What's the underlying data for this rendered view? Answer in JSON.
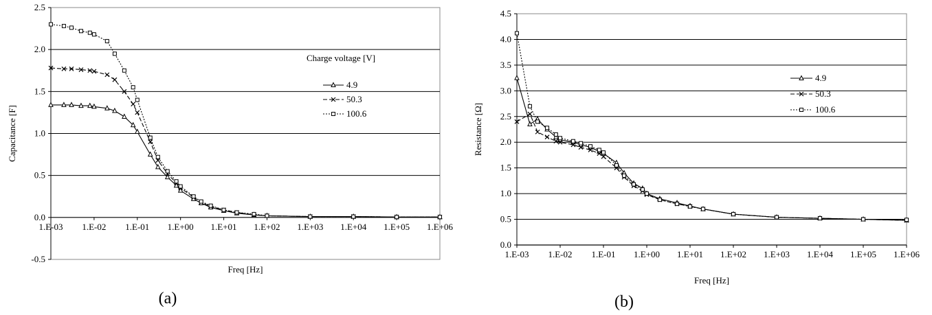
{
  "chart_data": [
    {
      "type": "line",
      "caption": "(a)",
      "xlabel": "Freq [Hz]",
      "ylabel": "Capacitance [F]",
      "x_scale": "log",
      "xlim": [
        0.001,
        1000000
      ],
      "ylim": [
        -0.5,
        2.5
      ],
      "x_ticks": [
        "1.E-03",
        "1.E-02",
        "1.E-01",
        "1.E+00",
        "1.E+01",
        "1.E+02",
        "1.E+03",
        "1.E+04",
        "1.E+05",
        "1.E+06"
      ],
      "y_ticks": [
        "-0.5",
        "0.0",
        "0.5",
        "1.0",
        "1.5",
        "2.0",
        "2.5"
      ],
      "y_tick_values": [
        -0.5,
        0,
        0.5,
        1,
        1.5,
        2,
        2.5
      ],
      "grid": "horizontal",
      "legend_title": "Charge voltage [V]",
      "legend_position": "right",
      "series": [
        {
          "name": "4.9",
          "marker": "triangle",
          "dash": "solid",
          "x": [
            0.001,
            0.002,
            0.003,
            0.005,
            0.008,
            0.01,
            0.02,
            0.03,
            0.05,
            0.08,
            0.1,
            0.2,
            0.3,
            0.5,
            0.8,
            1,
            2,
            3,
            5,
            10,
            20,
            50,
            100,
            1000,
            10000,
            100000,
            1000000
          ],
          "y": [
            1.34,
            1.34,
            1.34,
            1.33,
            1.33,
            1.32,
            1.3,
            1.27,
            1.2,
            1.1,
            1.02,
            0.75,
            0.6,
            0.48,
            0.38,
            0.32,
            0.22,
            0.17,
            0.12,
            0.08,
            0.05,
            0.03,
            0.02,
            0.01,
            0.01,
            0.005,
            0.005
          ]
        },
        {
          "name": "50.3",
          "marker": "x",
          "dash": "dash",
          "x": [
            0.001,
            0.002,
            0.003,
            0.005,
            0.008,
            0.01,
            0.02,
            0.03,
            0.05,
            0.08,
            0.1,
            0.2,
            0.3,
            0.5,
            0.8,
            1,
            2,
            3,
            5,
            10,
            20,
            50,
            100,
            1000,
            10000,
            100000,
            1000000
          ],
          "y": [
            1.78,
            1.77,
            1.77,
            1.76,
            1.75,
            1.74,
            1.7,
            1.64,
            1.5,
            1.35,
            1.25,
            0.9,
            0.68,
            0.52,
            0.41,
            0.35,
            0.24,
            0.18,
            0.13,
            0.09,
            0.06,
            0.03,
            0.02,
            0.01,
            0.01,
            0.005,
            0.005
          ]
        },
        {
          "name": "100.6",
          "marker": "square",
          "dash": "dot",
          "x": [
            0.001,
            0.002,
            0.003,
            0.005,
            0.008,
            0.01,
            0.02,
            0.03,
            0.05,
            0.08,
            0.1,
            0.2,
            0.3,
            0.5,
            0.8,
            1,
            2,
            3,
            5,
            10,
            20,
            50,
            100,
            1000,
            10000,
            100000,
            1000000
          ],
          "y": [
            2.3,
            2.28,
            2.26,
            2.22,
            2.2,
            2.18,
            2.1,
            1.95,
            1.75,
            1.55,
            1.4,
            0.95,
            0.72,
            0.55,
            0.43,
            0.37,
            0.25,
            0.19,
            0.14,
            0.09,
            0.06,
            0.04,
            0.02,
            0.01,
            0.01,
            0.005,
            0.005
          ]
        }
      ]
    },
    {
      "type": "line",
      "caption": "(b)",
      "xlabel": "Freq [Hz]",
      "ylabel": "Resistance [Ω]",
      "x_scale": "log",
      "xlim": [
        0.001,
        1000000
      ],
      "ylim": [
        0,
        4.5
      ],
      "x_ticks": [
        "1.E-03",
        "1.E-02",
        "1.E-01",
        "1.E+00",
        "1.E+01",
        "1.E+02",
        "1.E+03",
        "1.E+04",
        "1.E+05",
        "1.E+06"
      ],
      "y_ticks": [
        "0.0",
        "0.5",
        "1.0",
        "1.5",
        "2.0",
        "2.5",
        "3.0",
        "3.5",
        "4.0",
        "4.5"
      ],
      "y_tick_values": [
        0,
        0.5,
        1,
        1.5,
        2,
        2.5,
        3,
        3.5,
        4,
        4.5
      ],
      "grid": "horizontal",
      "legend_title": "",
      "legend_position": "right",
      "series": [
        {
          "name": "4.9",
          "marker": "triangle",
          "dash": "solid",
          "x": [
            0.001,
            0.002,
            0.003,
            0.005,
            0.008,
            0.01,
            0.02,
            0.03,
            0.05,
            0.08,
            0.1,
            0.2,
            0.3,
            0.5,
            0.8,
            1,
            2,
            5,
            10,
            20,
            100,
            1000,
            10000,
            100000,
            1000000
          ],
          "y": [
            3.25,
            2.35,
            2.45,
            2.25,
            2.1,
            2.05,
            2.0,
            1.95,
            1.9,
            1.82,
            1.78,
            1.6,
            1.4,
            1.2,
            1.1,
            1.0,
            0.9,
            0.82,
            0.76,
            0.7,
            0.6,
            0.54,
            0.52,
            0.5,
            0.48
          ]
        },
        {
          "name": "50.3",
          "marker": "x",
          "dash": "dash",
          "x": [
            0.001,
            0.002,
            0.003,
            0.005,
            0.008,
            0.01,
            0.02,
            0.03,
            0.05,
            0.08,
            0.1,
            0.2,
            0.3,
            0.5,
            0.8,
            1,
            2,
            5,
            10,
            20,
            100,
            1000,
            10000,
            100000,
            1000000
          ],
          "y": [
            2.4,
            2.55,
            2.2,
            2.1,
            2.02,
            2.0,
            1.95,
            1.9,
            1.85,
            1.78,
            1.72,
            1.5,
            1.32,
            1.15,
            1.05,
            0.98,
            0.88,
            0.8,
            0.75,
            0.7,
            0.6,
            0.54,
            0.52,
            0.5,
            0.48
          ]
        },
        {
          "name": "100.6",
          "marker": "square",
          "dash": "dot",
          "x": [
            0.001,
            0.002,
            0.003,
            0.005,
            0.008,
            0.01,
            0.02,
            0.03,
            0.05,
            0.08,
            0.1,
            0.2,
            0.3,
            0.5,
            0.8,
            1,
            2,
            5,
            10,
            20,
            100,
            1000,
            10000,
            100000,
            1000000
          ],
          "y": [
            4.12,
            2.7,
            2.4,
            2.28,
            2.15,
            2.08,
            2.02,
            1.98,
            1.92,
            1.85,
            1.8,
            1.55,
            1.35,
            1.18,
            1.08,
            1.0,
            0.88,
            0.8,
            0.75,
            0.7,
            0.6,
            0.54,
            0.52,
            0.5,
            0.49
          ]
        }
      ]
    }
  ]
}
